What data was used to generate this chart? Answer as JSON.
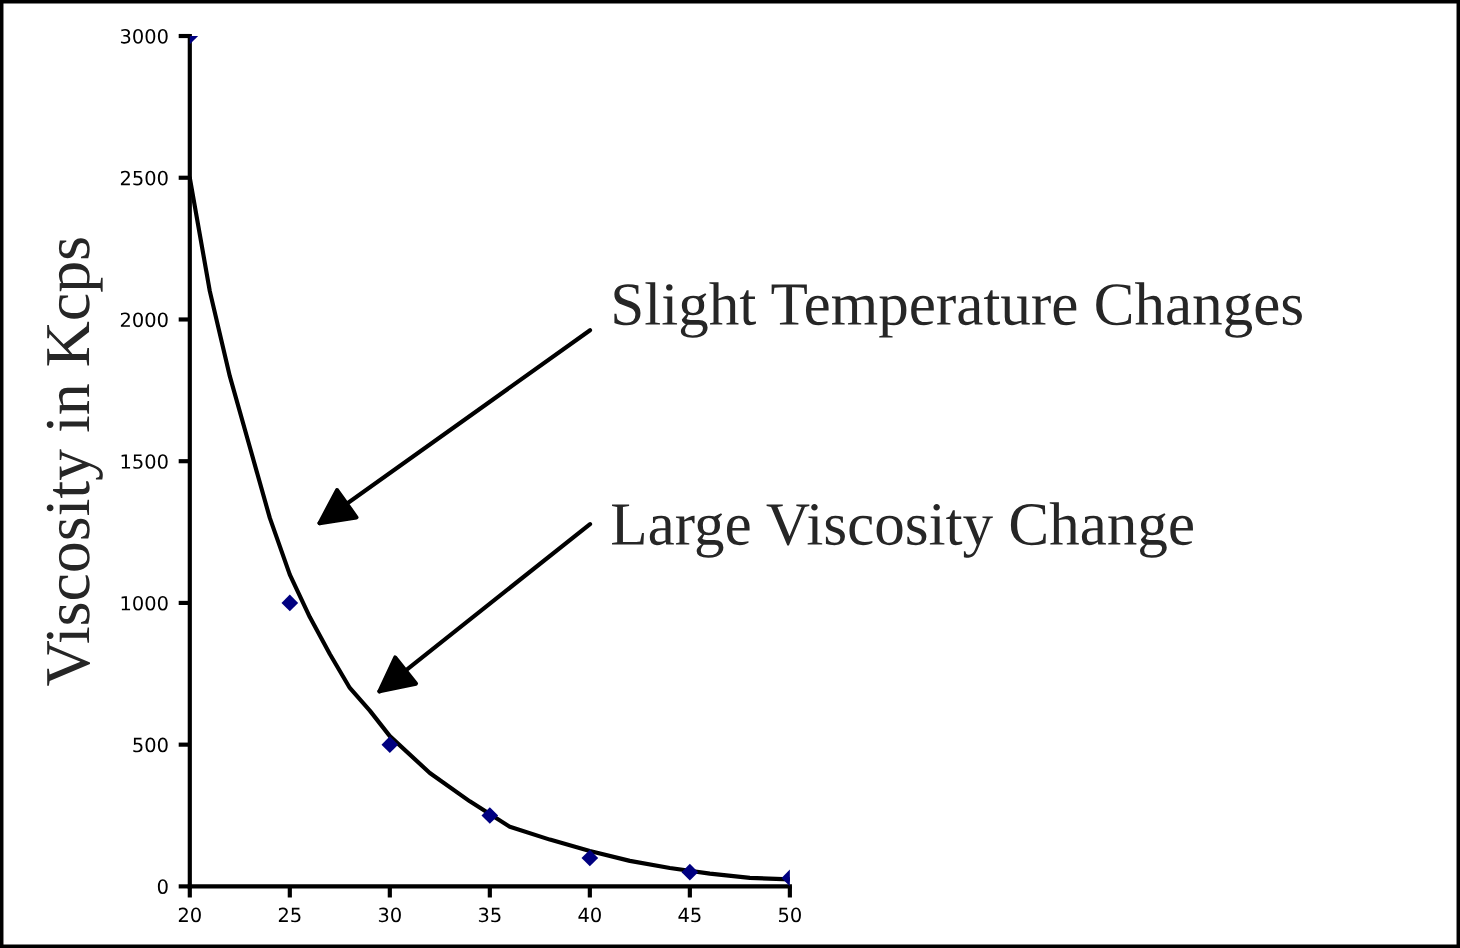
{
  "chart_data": {
    "type": "scatter",
    "ylabel": "Viscosity in Kcps",
    "series": [
      {
        "marker": "diamond",
        "color": "#000080",
        "x": [
          20,
          25,
          30,
          35,
          40,
          45,
          50
        ],
        "values": [
          3000,
          1000,
          500,
          250,
          100,
          50,
          30
        ]
      },
      {
        "type": "line",
        "marker": "none",
        "line_style": "solid",
        "color": "#000000",
        "x": [
          20,
          21,
          22,
          23,
          24,
          25,
          26,
          27,
          28,
          29,
          30,
          32,
          34,
          36,
          38,
          40,
          42,
          44,
          46,
          48,
          50
        ],
        "values": [
          2500,
          2100,
          1800,
          1550,
          1300,
          1100,
          950,
          820,
          700,
          620,
          530,
          400,
          300,
          210,
          165,
          125,
          90,
          65,
          45,
          30,
          25
        ]
      }
    ],
    "xlim": [
      20,
      50
    ],
    "xticks": [
      20,
      25,
      30,
      35,
      40,
      45,
      50
    ],
    "ylim": [
      0,
      3000
    ],
    "yticks": [
      0,
      500,
      1000,
      1500,
      2000,
      2500,
      3000
    ],
    "annotations": [
      "Slight Temperature Changes",
      "Large Viscosity Change"
    ],
    "grid": false,
    "legend": false
  }
}
